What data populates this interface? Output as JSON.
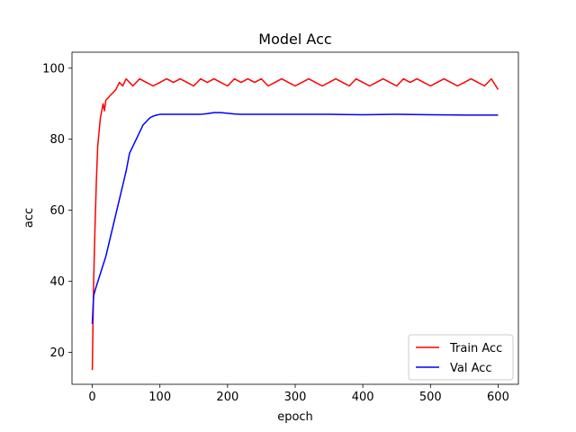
{
  "chart_data": {
    "type": "line",
    "title": "Model Acc",
    "xlabel": "epoch",
    "ylabel": "acc",
    "xlim": [
      -30,
      630
    ],
    "ylim": [
      11,
      104.5
    ],
    "xticks": [
      0,
      100,
      200,
      300,
      400,
      500,
      600
    ],
    "yticks": [
      20,
      40,
      60,
      80,
      100
    ],
    "grid": false,
    "legend": "lower-right",
    "series": [
      {
        "name": "Train Acc",
        "color": "#ff0000",
        "x": [
          0,
          2,
          4,
          6,
          8,
          10,
          12,
          14,
          16,
          18,
          20,
          25,
          30,
          35,
          40,
          45,
          50,
          55,
          60,
          70,
          80,
          90,
          100,
          110,
          120,
          130,
          140,
          150,
          160,
          170,
          180,
          190,
          200,
          210,
          220,
          230,
          240,
          250,
          260,
          270,
          280,
          290,
          300,
          310,
          320,
          330,
          340,
          350,
          360,
          370,
          380,
          390,
          400,
          410,
          420,
          430,
          440,
          450,
          460,
          470,
          480,
          490,
          500,
          510,
          520,
          530,
          540,
          550,
          560,
          570,
          580,
          590,
          600
        ],
        "y": [
          15,
          40,
          55,
          68,
          78,
          82,
          86,
          88,
          90,
          88,
          91,
          92,
          93,
          94,
          96,
          95,
          97,
          96,
          95,
          97,
          96,
          95,
          96,
          97,
          96,
          97,
          96,
          95,
          97,
          96,
          97,
          96,
          95,
          97,
          96,
          97,
          96,
          97,
          95,
          96,
          97,
          96,
          95,
          96,
          97,
          96,
          95,
          96,
          97,
          96,
          95,
          97,
          96,
          95,
          96,
          97,
          96,
          95,
          97,
          96,
          97,
          96,
          95,
          96,
          97,
          96,
          95,
          96,
          97,
          96,
          95,
          97,
          94
        ]
      },
      {
        "name": "Val Acc",
        "color": "#0000ff",
        "x": [
          0,
          2,
          5,
          10,
          15,
          20,
          25,
          30,
          35,
          40,
          45,
          50,
          55,
          60,
          65,
          70,
          75,
          80,
          85,
          90,
          95,
          100,
          110,
          120,
          130,
          140,
          150,
          160,
          170,
          180,
          190,
          200,
          210,
          220,
          250,
          300,
          350,
          400,
          450,
          500,
          550,
          600
        ],
        "y": [
          28,
          36,
          38,
          41,
          44,
          47,
          51,
          55,
          59,
          63,
          67,
          71,
          76,
          78,
          80,
          82,
          84,
          85,
          86,
          86.5,
          86.8,
          87,
          87,
          87,
          87,
          87,
          87,
          87,
          87.2,
          87.5,
          87.5,
          87.3,
          87.1,
          87,
          87,
          87,
          87,
          86.9,
          87,
          86.9,
          86.8,
          86.8
        ]
      }
    ]
  }
}
